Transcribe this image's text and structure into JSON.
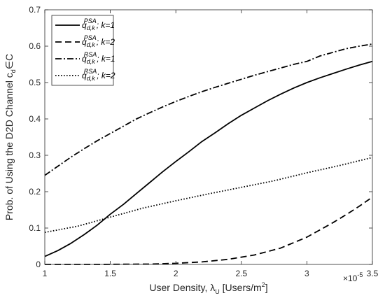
{
  "chart_data": {
    "type": "line",
    "xlabel": "User Density, λ",
    "xlabel_sub": "U",
    "xlabel_units": "[Users/m",
    "xlabel_units_sup": "2",
    "xlabel_units_end": "]",
    "x_exponent_label": "×10",
    "x_exponent_power": "-5",
    "ylabel": "Prob. of Using the D2D Channel c",
    "ylabel_sub": "d",
    "ylabel_tail": "∈C",
    "xlim": [
      1,
      3.5
    ],
    "ylim": [
      0,
      0.7
    ],
    "xticks": [
      1,
      1.5,
      2,
      2.5,
      3,
      3.5
    ],
    "xtick_labels": [
      "1",
      "1.5",
      "2",
      "2.5",
      "3",
      "3.5"
    ],
    "yticks": [
      0,
      0.1,
      0.2,
      0.3,
      0.4,
      0.5,
      0.6,
      0.7
    ],
    "ytick_labels": [
      "0",
      "0.1",
      "0.2",
      "0.3",
      "0.4",
      "0.5",
      "0.6",
      "0.7"
    ],
    "grid": false,
    "legend_position": "top-left",
    "series": [
      {
        "name": "q_{d,k}^{PSA}; k=1",
        "style": "solid",
        "x": [
          1.0,
          1.1,
          1.2,
          1.3,
          1.4,
          1.5,
          1.6,
          1.7,
          1.8,
          1.9,
          2.0,
          2.1,
          2.2,
          2.3,
          2.4,
          2.5,
          2.6,
          2.7,
          2.8,
          2.9,
          3.0,
          3.1,
          3.2,
          3.3,
          3.4,
          3.5
        ],
        "y": [
          0.022,
          0.038,
          0.058,
          0.082,
          0.108,
          0.138,
          0.165,
          0.195,
          0.225,
          0.255,
          0.283,
          0.31,
          0.338,
          0.362,
          0.387,
          0.41,
          0.43,
          0.45,
          0.468,
          0.485,
          0.5,
          0.513,
          0.525,
          0.537,
          0.548,
          0.558
        ]
      },
      {
        "name": "q_{d,k}^{PSA}; k=2",
        "style": "dashed",
        "x": [
          1.0,
          1.2,
          1.4,
          1.6,
          1.8,
          2.0,
          2.2,
          2.4,
          2.6,
          2.8,
          3.0,
          3.1,
          3.2,
          3.3,
          3.4,
          3.5
        ],
        "y": [
          0.0,
          0.0,
          0.0,
          0.0005,
          0.001,
          0.003,
          0.007,
          0.014,
          0.026,
          0.045,
          0.075,
          0.095,
          0.115,
          0.137,
          0.16,
          0.185
        ]
      },
      {
        "name": "q_{d,k}^{RSA}; k=1",
        "style": "dashdot",
        "x": [
          1.0,
          1.1,
          1.2,
          1.3,
          1.4,
          1.5,
          1.6,
          1.7,
          1.8,
          1.9,
          2.0,
          2.1,
          2.2,
          2.3,
          2.4,
          2.5,
          2.6,
          2.7,
          2.8,
          2.9,
          3.0,
          3.1,
          3.2,
          3.3,
          3.4,
          3.5
        ],
        "y": [
          0.245,
          0.27,
          0.295,
          0.318,
          0.34,
          0.36,
          0.38,
          0.4,
          0.417,
          0.433,
          0.448,
          0.462,
          0.475,
          0.487,
          0.498,
          0.509,
          0.52,
          0.53,
          0.54,
          0.55,
          0.558,
          0.573,
          0.583,
          0.593,
          0.6,
          0.606
        ]
      },
      {
        "name": "q_{d,k}^{RSA}; k=2",
        "style": "dotted",
        "x": [
          1.0,
          1.25,
          1.5,
          1.75,
          2.0,
          2.25,
          2.5,
          2.75,
          3.0,
          3.25,
          3.5
        ],
        "y": [
          0.088,
          0.105,
          0.13,
          0.155,
          0.175,
          0.194,
          0.212,
          0.23,
          0.252,
          0.272,
          0.294
        ]
      }
    ]
  },
  "legend": {
    "items": [
      {
        "base": "q",
        "sub": "d,k",
        "sup": "PSA",
        "tail": "; k=1"
      },
      {
        "base": "q",
        "sub": "d,k",
        "sup": "PSA",
        "tail": "; k=2"
      },
      {
        "base": "q",
        "sub": "d,k",
        "sup": "RSA",
        "tail": "; k=1"
      },
      {
        "base": "q",
        "sub": "d,k",
        "sup": "RSA",
        "tail": "; k=2"
      }
    ]
  }
}
